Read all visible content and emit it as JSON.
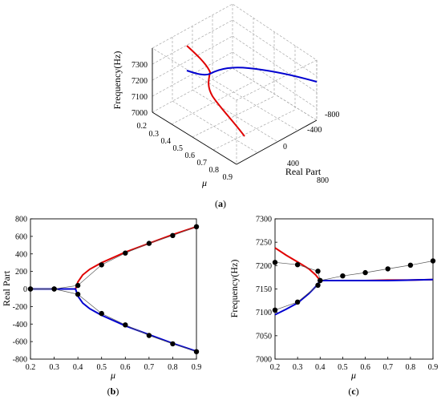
{
  "chart_data": [
    {
      "panel": "a",
      "type": "line",
      "view": "3d",
      "caption": "(a)",
      "x_axis": {
        "label": "μ",
        "ticks": [
          0.2,
          0.3,
          0.4,
          0.5,
          0.6,
          0.7,
          0.8,
          0.9
        ],
        "range": [
          0.2,
          0.9
        ]
      },
      "y_axis": {
        "label": "Real Part",
        "ticks": [
          -800,
          -400,
          0,
          400,
          800
        ],
        "range": [
          -800,
          800
        ]
      },
      "z_axis": {
        "label": "Frequency(Hz)",
        "ticks": [
          7000,
          7100,
          7200,
          7300
        ],
        "range": [
          7000,
          7300
        ]
      },
      "grid": true,
      "series": [
        {
          "color": "#e00000",
          "points": [
            [
              0.2,
              0,
              7300
            ],
            [
              0.3,
              0,
              7260
            ],
            [
              0.35,
              0,
              7230
            ],
            [
              0.39,
              0,
              7190
            ],
            [
              0.45,
              150,
              7150
            ],
            [
              0.55,
              300,
              7110
            ],
            [
              0.7,
              500,
              7050
            ],
            [
              0.9,
              720,
              7000
            ]
          ]
        },
        {
          "color": "#0000d0",
          "points": [
            [
              0.2,
              0,
              7180
            ],
            [
              0.3,
              0,
              7185
            ],
            [
              0.39,
              0,
              7190
            ],
            [
              0.45,
              -150,
              7185
            ],
            [
              0.55,
              -300,
              7180
            ],
            [
              0.7,
              -500,
              7175
            ],
            [
              0.9,
              -720,
              7170
            ]
          ]
        }
      ]
    },
    {
      "panel": "b",
      "type": "line",
      "caption": "(b)",
      "xlabel": "μ",
      "ylabel": "Real Part",
      "xlim": [
        0.2,
        0.9
      ],
      "ylim": [
        -800,
        800
      ],
      "x_ticks": [
        "0.2",
        "0.3",
        "0.4",
        "0.5",
        "0.6",
        "0.7",
        "0.8",
        "0.9"
      ],
      "y_ticks": [
        "-800",
        "-600",
        "-400",
        "-200",
        "0",
        "200",
        "400",
        "600",
        "800"
      ],
      "series": [
        {
          "color": "#e00000",
          "x": [
            0.2,
            0.3,
            0.39,
            0.4,
            0.42,
            0.45,
            0.5,
            0.6,
            0.7,
            0.8,
            0.9
          ],
          "y": [
            0,
            0,
            0,
            80,
            160,
            225,
            300,
            420,
            520,
            620,
            710
          ]
        },
        {
          "color": "#0000d0",
          "x": [
            0.2,
            0.3,
            0.39,
            0.4,
            0.42,
            0.45,
            0.5,
            0.6,
            0.7,
            0.8,
            0.9
          ],
          "y": [
            0,
            0,
            0,
            -80,
            -160,
            -225,
            -300,
            -420,
            -520,
            -620,
            -710
          ]
        },
        {
          "color": "#000000",
          "markers": true,
          "x": [
            0.2,
            0.3,
            0.4,
            0.5,
            0.6,
            0.7,
            0.8,
            0.9
          ],
          "y": [
            0,
            0,
            40,
            275,
            410,
            520,
            610,
            710
          ]
        },
        {
          "color": "#000000",
          "markers": true,
          "x": [
            0.2,
            0.3,
            0.4,
            0.5,
            0.6,
            0.7,
            0.8,
            0.9
          ],
          "y": [
            0,
            0,
            -60,
            -280,
            -410,
            -530,
            -625,
            -715
          ]
        }
      ]
    },
    {
      "panel": "c",
      "type": "line",
      "caption": "(c)",
      "xlabel": "μ",
      "ylabel": "Frequency(Hz)",
      "xlim": [
        0.2,
        0.9
      ],
      "ylim": [
        7000,
        7300
      ],
      "x_ticks": [
        "0.2",
        "0.3",
        "0.4",
        "0.5",
        "0.6",
        "0.7",
        "0.8",
        "0.9"
      ],
      "y_ticks": [
        "7000",
        "7050",
        "7100",
        "7150",
        "7200",
        "7250",
        "7300"
      ],
      "series": [
        {
          "color": "#e00000",
          "x": [
            0.2,
            0.25,
            0.3,
            0.35,
            0.38,
            0.4,
            0.5,
            0.6,
            0.7,
            0.8,
            0.9
          ],
          "y": [
            7238,
            7222,
            7208,
            7193,
            7180,
            7168,
            7168,
            7168,
            7169,
            7169,
            7170
          ]
        },
        {
          "color": "#0000d0",
          "x": [
            0.2,
            0.25,
            0.3,
            0.35,
            0.38,
            0.4,
            0.5,
            0.6,
            0.7,
            0.8,
            0.9
          ],
          "y": [
            7095,
            7107,
            7120,
            7140,
            7155,
            7168,
            7168,
            7168,
            7168,
            7169,
            7170
          ]
        },
        {
          "color": "#000000",
          "markers": true,
          "x": [
            0.2,
            0.3,
            0.39,
            0.4,
            0.5,
            0.6,
            0.7,
            0.8,
            0.9
          ],
          "y": [
            7207,
            7202,
            7188,
            7168,
            7178,
            7185,
            7193,
            7201,
            7210
          ]
        },
        {
          "color": "#000000",
          "markers": true,
          "x": [
            0.2,
            0.3,
            0.39,
            0.4
          ],
          "y": [
            7105,
            7122,
            7158,
            7168
          ]
        }
      ]
    }
  ]
}
